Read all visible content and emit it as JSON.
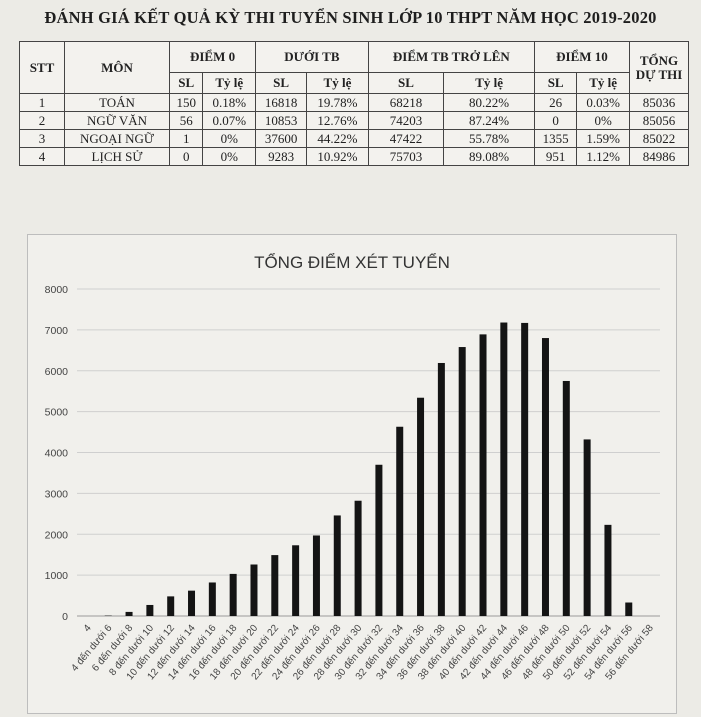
{
  "header": {
    "title": "ĐÁNH GIÁ KẾT QUẢ KỲ THI TUYỂN SINH LỚP 10 THPT NĂM HỌC 2019-2020"
  },
  "table": {
    "col_stt": "STT",
    "col_mon": "MÔN",
    "group_diem0": "ĐIỂM 0",
    "group_duoitb": "DƯỚI TB",
    "group_tren_tb": "ĐIỂM TB TRỞ LÊN",
    "group_diem10": "ĐIỂM 10",
    "col_tong": "TỔNG DỰ THI",
    "sub_sl": "SL",
    "sub_tyle": "Tỷ lệ",
    "rows": [
      {
        "stt": "1",
        "mon": "TOÁN",
        "d0_sl": "150",
        "d0_tl": "0.18%",
        "dtb_sl": "16818",
        "dtb_tl": "19.78%",
        "ttb_sl": "68218",
        "ttb_tl": "80.22%",
        "d10_sl": "26",
        "d10_tl": "0.03%",
        "tong": "85036"
      },
      {
        "stt": "2",
        "mon": "NGỮ VĂN",
        "d0_sl": "56",
        "d0_tl": "0.07%",
        "dtb_sl": "10853",
        "dtb_tl": "12.76%",
        "ttb_sl": "74203",
        "ttb_tl": "87.24%",
        "d10_sl": "0",
        "d10_tl": "0%",
        "tong": "85056"
      },
      {
        "stt": "3",
        "mon": "NGOẠI NGỮ",
        "d0_sl": "1",
        "d0_tl": "0%",
        "dtb_sl": "37600",
        "dtb_tl": "44.22%",
        "ttb_sl": "47422",
        "ttb_tl": "55.78%",
        "d10_sl": "1355",
        "d10_tl": "1.59%",
        "tong": "85022"
      },
      {
        "stt": "4",
        "mon": "LỊCH SỬ",
        "d0_sl": "0",
        "d0_tl": "0%",
        "dtb_sl": "9283",
        "dtb_tl": "10.92%",
        "ttb_sl": "75703",
        "ttb_tl": "89.08%",
        "d10_sl": "951",
        "d10_tl": "1.12%",
        "tong": "84986"
      }
    ]
  },
  "chart_data": {
    "type": "bar",
    "title": "TỔNG ĐIỂM XÉT TUYỂN",
    "xlabel": "",
    "ylabel": "",
    "ylim": [
      0,
      8000
    ],
    "yticks": [
      "0",
      "1000",
      "2000",
      "3000",
      "4000",
      "5000",
      "6000",
      "7000",
      "8000"
    ],
    "grid": true,
    "bar_color": "#141414",
    "categories": [
      "4",
      "4 đến dưới 6",
      "6 đến dưới 8",
      "8 đến dưới 10",
      "10 đến dưới 12",
      "12 đến dưới 14",
      "14 đến dưới 16",
      "16 đến dưới 18",
      "18 đến dưới 20",
      "20 đến dưới 22",
      "22 đến dưới 24",
      "24 đến dưới 26",
      "26 đến dưới 28",
      "28 đến dưới 30",
      "30 đến dưới 32",
      "32 đến dưới 34",
      "34 đến dưới 36",
      "36 đến dưới 38",
      "38 đến dưới 40",
      "40 đến dưới 42",
      "42 đến dưới 44",
      "44 đến dưới 46",
      "46 đến dưới 48",
      "48 đến dưới 50",
      "50 đến dưới 52",
      "52 đến dưới 54",
      "54 đến dưới 56",
      "56 đến dưới 58"
    ],
    "values": [
      0,
      10,
      100,
      270,
      480,
      620,
      820,
      1030,
      1260,
      1490,
      1730,
      1970,
      2460,
      2820,
      3700,
      4630,
      5340,
      6190,
      6580,
      6890,
      7180,
      7170,
      6800,
      5750,
      4320,
      2230,
      330,
      0
    ]
  }
}
